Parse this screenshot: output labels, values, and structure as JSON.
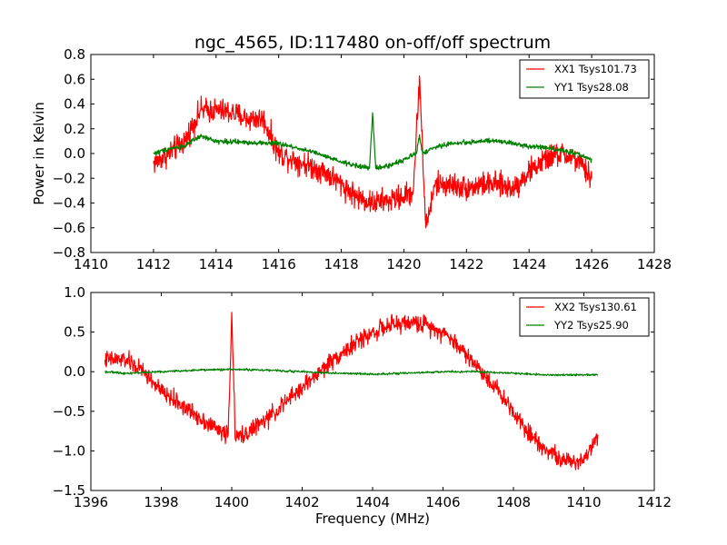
{
  "figure": {
    "title": "ngc_4565, ID:117480 on-off/off spectrum"
  },
  "chart_data": [
    {
      "type": "line",
      "ylabel": "Power in Kelvin",
      "xlabel": "",
      "xlim": [
        1410,
        1428
      ],
      "ylim": [
        -0.8,
        0.8
      ],
      "xticks": [
        1410,
        1412,
        1414,
        1416,
        1418,
        1420,
        1422,
        1424,
        1426,
        1428
      ],
      "yticks": [
        -0.8,
        -0.6,
        -0.4,
        -0.2,
        0.0,
        0.2,
        0.4,
        0.6,
        0.8
      ],
      "xtick_labels": [
        "1410",
        "1412",
        "1414",
        "1416",
        "1418",
        "1420",
        "1422",
        "1424",
        "1426",
        "1428"
      ],
      "ytick_labels": [
        "−0.8",
        "−0.6",
        "−0.4",
        "−0.2",
        "0.0",
        "0.2",
        "0.4",
        "0.6",
        "0.8"
      ],
      "grid": false,
      "legend_position": "top-right",
      "series": [
        {
          "name": "XX1 Tsys101.73",
          "color": "#ff0000",
          "noise": 0.06,
          "x": [
            1412.0,
            1412.5,
            1413.0,
            1413.5,
            1414.0,
            1414.5,
            1415.0,
            1415.5,
            1416.0,
            1416.5,
            1417.0,
            1417.5,
            1418.0,
            1418.5,
            1419.0,
            1419.5,
            1420.0,
            1420.3,
            1420.5,
            1420.7,
            1421.0,
            1421.5,
            1422.0,
            1422.5,
            1423.0,
            1423.5,
            1424.0,
            1424.5,
            1425.0,
            1425.5,
            1426.0
          ],
          "y": [
            -0.08,
            0.0,
            0.1,
            0.35,
            0.35,
            0.33,
            0.28,
            0.28,
            0.0,
            -0.05,
            -0.1,
            -0.15,
            -0.25,
            -0.35,
            -0.4,
            -0.38,
            -0.35,
            -0.3,
            0.62,
            -0.6,
            -0.25,
            -0.25,
            -0.28,
            -0.25,
            -0.25,
            -0.28,
            -0.15,
            -0.05,
            0.0,
            -0.05,
            -0.2
          ]
        },
        {
          "name": "YY1 Tsys28.08",
          "color": "#008000",
          "noise": 0.012,
          "x": [
            1412.0,
            1412.5,
            1413.0,
            1413.5,
            1414.0,
            1415.0,
            1416.0,
            1417.0,
            1418.0,
            1418.9,
            1419.0,
            1419.1,
            1419.5,
            1420.0,
            1420.4,
            1420.5,
            1420.6,
            1421.0,
            1421.5,
            1422.0,
            1422.5,
            1423.0,
            1423.5,
            1424.0,
            1424.5,
            1425.0,
            1425.5,
            1426.0
          ],
          "y": [
            0.0,
            0.04,
            0.06,
            0.14,
            0.1,
            0.09,
            0.08,
            0.02,
            -0.07,
            -0.12,
            0.33,
            -0.12,
            -0.1,
            -0.05,
            0.0,
            0.15,
            0.0,
            0.05,
            0.08,
            0.09,
            0.1,
            0.1,
            0.08,
            0.06,
            0.05,
            0.03,
            0.0,
            -0.05
          ]
        }
      ]
    },
    {
      "type": "line",
      "ylabel": "",
      "xlabel": "Frequency (MHz)",
      "xlim": [
        1396,
        1412
      ],
      "ylim": [
        -1.5,
        1.0
      ],
      "xticks": [
        1396,
        1398,
        1400,
        1402,
        1404,
        1406,
        1408,
        1410,
        1412
      ],
      "yticks": [
        -1.5,
        -1.0,
        -0.5,
        0.0,
        0.5,
        1.0
      ],
      "xtick_labels": [
        "1396",
        "1398",
        "1400",
        "1402",
        "1404",
        "1406",
        "1408",
        "1410",
        "1412"
      ],
      "ytick_labels": [
        "−1.5",
        "−1.0",
        "−0.5",
        "0.0",
        "0.5",
        "1.0"
      ],
      "grid": false,
      "legend_position": "top-right",
      "series": [
        {
          "name": "XX2 Tsys130.61",
          "color": "#ff0000",
          "noise": 0.07,
          "x": [
            1396.4,
            1397.0,
            1397.5,
            1398.0,
            1398.5,
            1399.0,
            1399.5,
            1399.9,
            1400.0,
            1400.1,
            1400.5,
            1401.0,
            1401.5,
            1402.0,
            1402.5,
            1403.0,
            1403.5,
            1404.0,
            1404.5,
            1405.0,
            1405.5,
            1406.0,
            1406.5,
            1407.0,
            1407.5,
            1408.0,
            1408.5,
            1409.0,
            1409.5,
            1410.0,
            1410.4
          ],
          "y": [
            0.15,
            0.15,
            0.0,
            -0.25,
            -0.4,
            -0.55,
            -0.7,
            -0.8,
            0.75,
            -0.85,
            -0.75,
            -0.6,
            -0.4,
            -0.2,
            0.0,
            0.2,
            0.35,
            0.5,
            0.58,
            0.62,
            0.6,
            0.5,
            0.3,
            0.05,
            -0.2,
            -0.5,
            -0.8,
            -1.0,
            -1.15,
            -1.1,
            -0.8
          ]
        },
        {
          "name": "YY2 Tsys25.90",
          "color": "#008000",
          "noise": 0.008,
          "x": [
            1396.4,
            1397.0,
            1398.0,
            1399.0,
            1400.0,
            1401.0,
            1402.0,
            1403.0,
            1404.0,
            1405.0,
            1406.0,
            1407.0,
            1408.0,
            1409.0,
            1410.0,
            1410.4
          ],
          "y": [
            0.0,
            -0.02,
            0.0,
            0.02,
            0.03,
            0.02,
            0.0,
            -0.02,
            -0.03,
            -0.02,
            0.0,
            0.0,
            -0.02,
            -0.04,
            -0.04,
            -0.04
          ]
        }
      ]
    }
  ]
}
